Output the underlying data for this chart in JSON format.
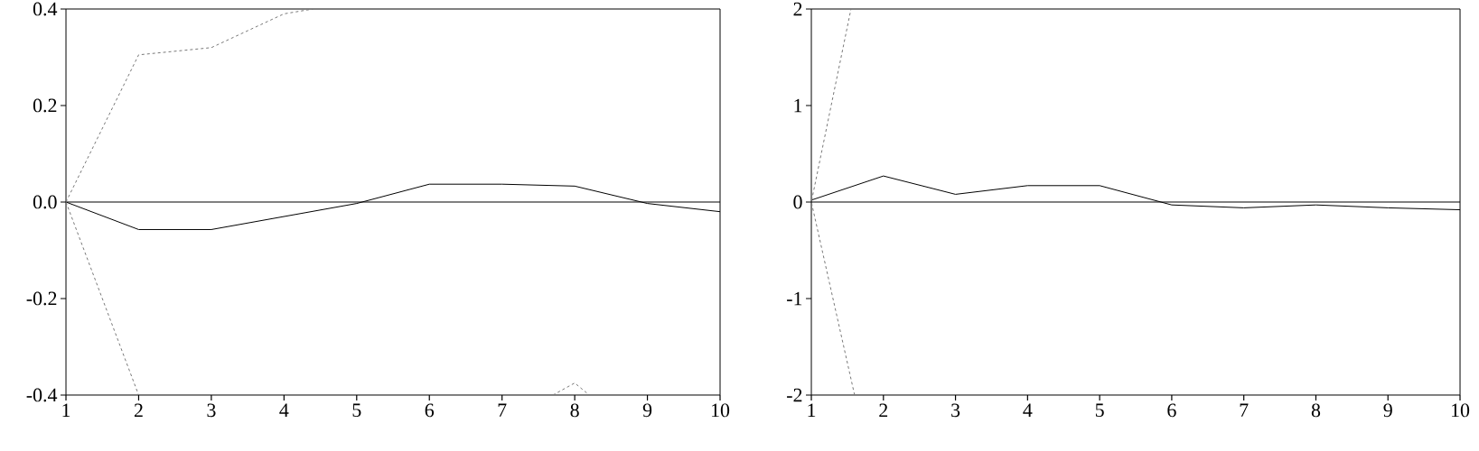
{
  "chart_data": [
    {
      "type": "line",
      "x": [
        1,
        2,
        3,
        4,
        5,
        6,
        7,
        8,
        9,
        10
      ],
      "xlim": [
        1,
        10
      ],
      "xticks": [
        1,
        2,
        3,
        4,
        5,
        6,
        7,
        8,
        9,
        10
      ],
      "ylim": [
        -0.4,
        0.4
      ],
      "yticks": [
        -0.4,
        -0.2,
        {
          "value": 0,
          "label": "0.0"
        },
        0.2,
        0.4
      ],
      "ref_lines": [
        {
          "axis": "y",
          "value": 0,
          "color": "#000000"
        }
      ],
      "series": [
        {
          "color": "#000000",
          "line_style": "solid",
          "values": [
            0,
            -0.057,
            -0.057,
            -0.03,
            -0.003,
            0.037,
            0.037,
            0.033,
            -0.003,
            -0.02
          ]
        },
        {
          "color": "#777777",
          "line_style": "dashed",
          "x": [
            1,
            2,
            3,
            4,
            4.4
          ],
          "values": [
            0,
            0.305,
            0.32,
            0.39,
            0.4
          ]
        },
        {
          "color": "#777777",
          "line_style": "dashed",
          "x": [
            1,
            2,
            5,
            7.7,
            8,
            8.2
          ],
          "values": [
            0,
            -0.4,
            null,
            -0.4,
            -0.375,
            -0.4
          ]
        }
      ]
    },
    {
      "type": "line",
      "x": [
        1,
        2,
        3,
        4,
        5,
        6,
        7,
        8,
        9,
        10
      ],
      "xlim": [
        1,
        10
      ],
      "xticks": [
        1,
        2,
        3,
        4,
        5,
        6,
        7,
        8,
        9,
        10
      ],
      "ylim": [
        -2,
        2
      ],
      "yticks": [
        -2,
        -1,
        0,
        1,
        2
      ],
      "ref_lines": [
        {
          "axis": "y",
          "value": 0,
          "color": "#000000"
        }
      ],
      "series": [
        {
          "color": "#000000",
          "line_style": "solid",
          "values": [
            0.02,
            0.27,
            0.08,
            0.17,
            0.17,
            -0.03,
            -0.06,
            -0.03,
            -0.06,
            -0.08
          ]
        },
        {
          "color": "#777777",
          "line_style": "dashed",
          "x": [
            1.6,
            1,
            1.55
          ],
          "values": [
            -2,
            0,
            2
          ]
        }
      ]
    }
  ]
}
